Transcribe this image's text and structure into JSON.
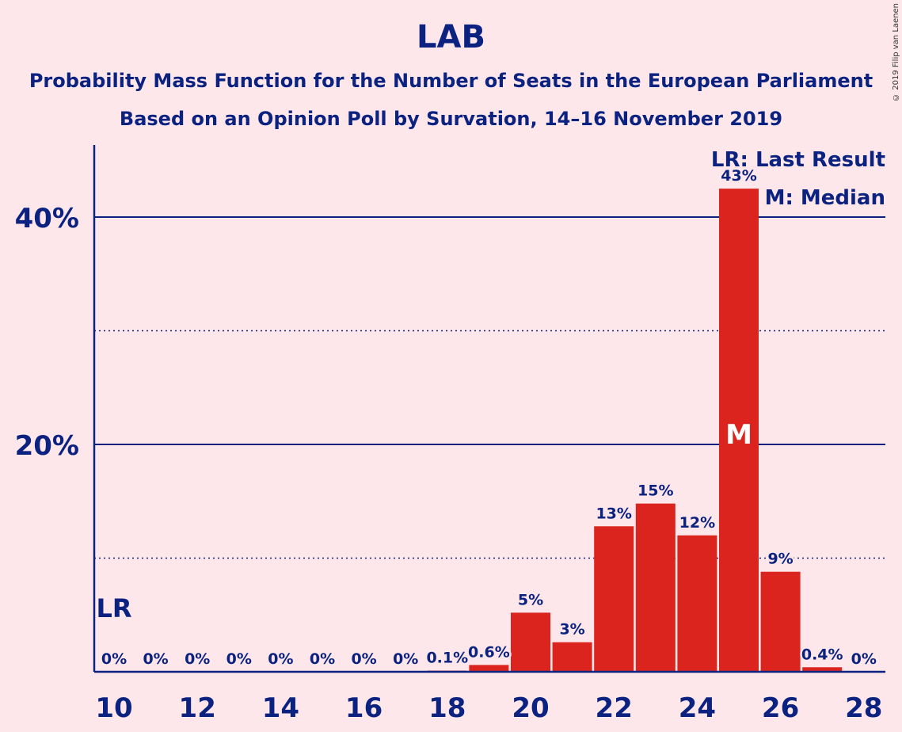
{
  "copyright": "© 2019 Filip van Laenen",
  "chart_data": {
    "type": "bar",
    "title": "LAB",
    "subtitle": "Probability Mass Function for the Number of Seats in the European Parliament",
    "subtitle2": "Based on an Opinion Poll by Survation, 14–16 November 2019",
    "x": [
      10,
      11,
      12,
      13,
      14,
      15,
      16,
      17,
      18,
      19,
      20,
      21,
      22,
      23,
      24,
      25,
      26,
      27,
      28
    ],
    "values": [
      0,
      0,
      0,
      0,
      0,
      0,
      0,
      0,
      0.1,
      0.6,
      5.2,
      2.6,
      12.8,
      14.8,
      12.0,
      42.5,
      8.8,
      0.4,
      0
    ],
    "data_labels": [
      "0%",
      "0%",
      "0%",
      "0%",
      "0%",
      "0%",
      "0%",
      "0%",
      "0.1%",
      "0.6%",
      "5%",
      "3%",
      "13%",
      "15%",
      "12%",
      "43%",
      "9%",
      "0.4%",
      "0%"
    ],
    "x_ticks": [
      10,
      12,
      14,
      16,
      18,
      20,
      22,
      24,
      26,
      28
    ],
    "x_tick_labels": [
      "10",
      "12",
      "14",
      "16",
      "18",
      "20",
      "22",
      "24",
      "26",
      "28"
    ],
    "y_ticks": [
      20,
      40
    ],
    "y_tick_labels": [
      "20%",
      "40%"
    ],
    "ylim": [
      0,
      46
    ],
    "last_result_seat": 10,
    "last_result_marker": "LR",
    "median_seat": 25,
    "median_marker": "M",
    "legend": [
      "LR: Last Result",
      "M: Median"
    ],
    "legend_position": "top-right",
    "bar_color": "#dc241f",
    "text_color": "#0b2280",
    "background_color": "#fde7ea"
  }
}
